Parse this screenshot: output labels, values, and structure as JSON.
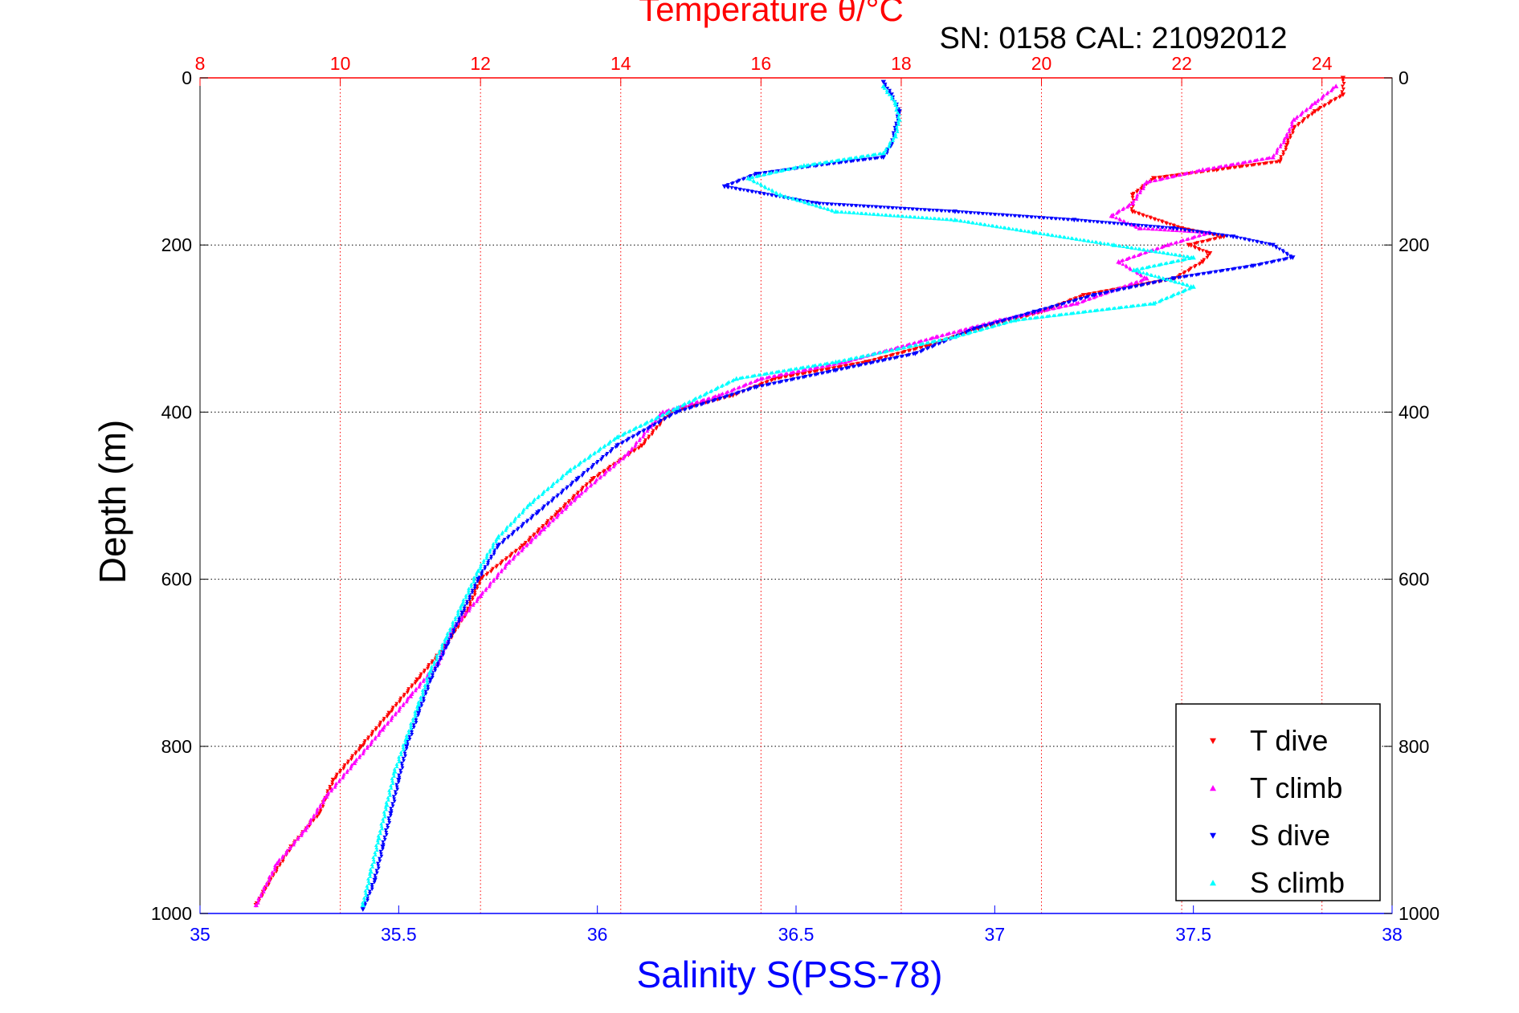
{
  "chart_data": {
    "type": "scatter",
    "title": "Temperature θ/°C",
    "subtitle": "SN: 0158  CAL: 21092012",
    "xlabel": "Salinity S(PSS-78)",
    "x2label": "Temperature θ/°C",
    "ylabel": "Depth (m)",
    "xlim": [
      35,
      38
    ],
    "x2lim": [
      8,
      25
    ],
    "ylim": [
      0,
      1000
    ],
    "y_reversed": true,
    "grid": true,
    "legend_position": "bottom-right",
    "x_ticks": [
      "35",
      "35.5",
      "36",
      "36.5",
      "37",
      "37.5",
      "38"
    ],
    "x2_ticks": [
      "8",
      "10",
      "12",
      "14",
      "16",
      "18",
      "20",
      "22",
      "24"
    ],
    "y_ticks": [
      "0",
      "200",
      "400",
      "600",
      "800",
      "1000"
    ],
    "colors": {
      "salinity_axis": "#0000ff",
      "temperature_axis": "#ff0000",
      "grid": "#000000",
      "temperature_grid": "#ff0000"
    },
    "series": [
      {
        "name": "T dive",
        "axis": "temperature",
        "color": "#ff0000",
        "marker": "triangle-down",
        "points": [
          [
            24.3,
            0
          ],
          [
            24.3,
            20
          ],
          [
            23.9,
            40
          ],
          [
            23.6,
            60
          ],
          [
            23.5,
            80
          ],
          [
            23.4,
            100
          ],
          [
            22.5,
            110
          ],
          [
            21.6,
            120
          ],
          [
            21.3,
            140
          ],
          [
            21.3,
            160
          ],
          [
            22.0,
            180
          ],
          [
            22.6,
            190
          ],
          [
            22.1,
            200
          ],
          [
            22.4,
            210
          ],
          [
            22.3,
            220
          ],
          [
            21.9,
            240
          ],
          [
            20.6,
            260
          ],
          [
            20.0,
            280
          ],
          [
            19.1,
            300
          ],
          [
            18.4,
            320
          ],
          [
            17.5,
            340
          ],
          [
            16.2,
            360
          ],
          [
            15.6,
            380
          ],
          [
            14.7,
            400
          ],
          [
            14.3,
            440
          ],
          [
            13.6,
            480
          ],
          [
            13.1,
            520
          ],
          [
            12.6,
            560
          ],
          [
            12.0,
            600
          ],
          [
            11.8,
            640
          ],
          [
            11.5,
            680
          ],
          [
            11.1,
            720
          ],
          [
            10.7,
            760
          ],
          [
            10.3,
            800
          ],
          [
            9.9,
            840
          ],
          [
            9.7,
            880
          ],
          [
            9.3,
            920
          ],
          [
            9.0,
            960
          ],
          [
            8.8,
            990
          ]
        ]
      },
      {
        "name": "T climb",
        "axis": "temperature",
        "color": "#ff00ff",
        "marker": "triangle-up",
        "points": [
          [
            24.2,
            10
          ],
          [
            23.9,
            30
          ],
          [
            23.6,
            50
          ],
          [
            23.5,
            70
          ],
          [
            23.3,
            95
          ],
          [
            22.3,
            110
          ],
          [
            21.5,
            125
          ],
          [
            21.3,
            150
          ],
          [
            21.0,
            165
          ],
          [
            21.4,
            180
          ],
          [
            22.4,
            185
          ],
          [
            21.8,
            200
          ],
          [
            21.1,
            220
          ],
          [
            21.5,
            240
          ],
          [
            20.5,
            270
          ],
          [
            19.4,
            290
          ],
          [
            18.5,
            310
          ],
          [
            17.2,
            340
          ],
          [
            16.0,
            360
          ],
          [
            15.4,
            380
          ],
          [
            14.6,
            400
          ],
          [
            14.1,
            450
          ],
          [
            13.4,
            500
          ],
          [
            12.9,
            540
          ],
          [
            12.4,
            580
          ],
          [
            12.0,
            620
          ],
          [
            11.6,
            660
          ],
          [
            11.4,
            700
          ],
          [
            11.0,
            740
          ],
          [
            10.6,
            780
          ],
          [
            10.2,
            820
          ],
          [
            9.8,
            860
          ],
          [
            9.5,
            900
          ],
          [
            9.1,
            940
          ],
          [
            8.8,
            990
          ]
        ]
      },
      {
        "name": "S dive",
        "axis": "salinity",
        "color": "#0000ff",
        "marker": "triangle-down",
        "points": [
          [
            36.72,
            5
          ],
          [
            36.74,
            20
          ],
          [
            36.76,
            40
          ],
          [
            36.75,
            60
          ],
          [
            36.74,
            80
          ],
          [
            36.72,
            95
          ],
          [
            36.55,
            105
          ],
          [
            36.4,
            115
          ],
          [
            36.32,
            130
          ],
          [
            36.55,
            150
          ],
          [
            36.9,
            160
          ],
          [
            37.2,
            170
          ],
          [
            37.45,
            180
          ],
          [
            37.6,
            190
          ],
          [
            37.7,
            200
          ],
          [
            37.75,
            215
          ],
          [
            37.65,
            225
          ],
          [
            37.45,
            240
          ],
          [
            37.25,
            260
          ],
          [
            37.1,
            280
          ],
          [
            36.95,
            300
          ],
          [
            36.8,
            330
          ],
          [
            36.6,
            350
          ],
          [
            36.4,
            370
          ],
          [
            36.2,
            400
          ],
          [
            36.05,
            440
          ],
          [
            35.95,
            480
          ],
          [
            35.85,
            520
          ],
          [
            35.75,
            560
          ],
          [
            35.7,
            600
          ],
          [
            35.66,
            640
          ],
          [
            35.62,
            680
          ],
          [
            35.58,
            720
          ],
          [
            35.55,
            760
          ],
          [
            35.52,
            800
          ],
          [
            35.5,
            840
          ],
          [
            35.48,
            880
          ],
          [
            35.46,
            920
          ],
          [
            35.44,
            960
          ],
          [
            35.41,
            995
          ]
        ]
      },
      {
        "name": "S climb",
        "axis": "salinity",
        "color": "#00ffff",
        "marker": "triangle-up",
        "points": [
          [
            36.72,
            10
          ],
          [
            36.75,
            30
          ],
          [
            36.76,
            50
          ],
          [
            36.75,
            70
          ],
          [
            36.72,
            90
          ],
          [
            36.52,
            105
          ],
          [
            36.38,
            120
          ],
          [
            36.46,
            140
          ],
          [
            36.6,
            160
          ],
          [
            36.9,
            170
          ],
          [
            37.1,
            185
          ],
          [
            37.3,
            200
          ],
          [
            37.5,
            215
          ],
          [
            37.35,
            230
          ],
          [
            37.5,
            250
          ],
          [
            37.4,
            270
          ],
          [
            37.05,
            290
          ],
          [
            36.9,
            310
          ],
          [
            36.6,
            340
          ],
          [
            36.35,
            360
          ],
          [
            36.2,
            395
          ],
          [
            36.05,
            430
          ],
          [
            35.93,
            470
          ],
          [
            35.83,
            510
          ],
          [
            35.75,
            550
          ],
          [
            35.7,
            590
          ],
          [
            35.66,
            630
          ],
          [
            35.62,
            670
          ],
          [
            35.58,
            710
          ],
          [
            35.55,
            750
          ],
          [
            35.52,
            790
          ],
          [
            35.49,
            830
          ],
          [
            35.47,
            870
          ],
          [
            35.45,
            910
          ],
          [
            35.43,
            950
          ],
          [
            35.41,
            990
          ]
        ]
      }
    ]
  }
}
